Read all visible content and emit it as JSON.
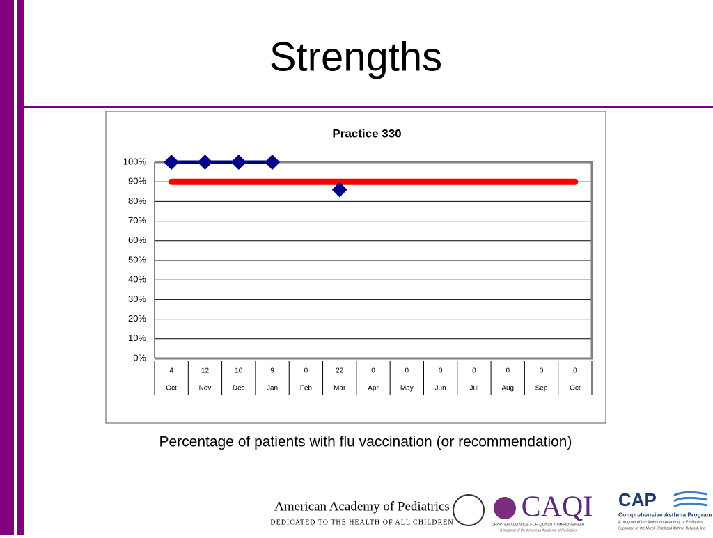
{
  "slide_title": "Strengths",
  "chart_data": {
    "type": "line",
    "title": "Practice 330",
    "categories": [
      "Oct",
      "Nov",
      "Dec",
      "Jan",
      "Feb",
      "Mar",
      "Apr",
      "May",
      "Jun",
      "Jul",
      "Aug",
      "Sep",
      "Oct"
    ],
    "counts": [
      4,
      12,
      10,
      9,
      0,
      22,
      0,
      0,
      0,
      0,
      0,
      0,
      0
    ],
    "series": [
      {
        "color": "#00008b",
        "markers": true,
        "values": [
          100,
          100,
          100,
          100,
          null,
          86,
          null,
          null,
          null,
          null,
          null,
          null,
          null
        ]
      },
      {
        "color": "#ff0000",
        "markers": false,
        "values": [
          90,
          90,
          90,
          90,
          90,
          90,
          90,
          90,
          90,
          90,
          90,
          90,
          90
        ]
      }
    ],
    "ylim": [
      0,
      100
    ],
    "yticks": [
      {
        "value": 0,
        "label": "0%"
      },
      {
        "value": 10,
        "label": "10%"
      },
      {
        "value": 20,
        "label": "20%"
      },
      {
        "value": 30,
        "label": "30%"
      },
      {
        "value": 40,
        "label": "40%"
      },
      {
        "value": 50,
        "label": "50%"
      },
      {
        "value": 60,
        "label": "60%"
      },
      {
        "value": 70,
        "label": "70%"
      },
      {
        "value": 80,
        "label": "80%"
      },
      {
        "value": 90,
        "label": "90%"
      },
      {
        "value": 100,
        "label": "100%"
      }
    ],
    "grid": true
  },
  "caption": "Percentage of patients with flu vaccination (or recommendation)",
  "footer": {
    "aap_name": "American Academy of Pediatrics",
    "aap_tagline": "DEDICATED TO THE HEALTH OF ALL CHILDREN",
    "caqi_name": "CAQI",
    "caqi_line1": "CHAPTER ALLIANCE FOR QUALITY IMPROVEMENT",
    "caqi_line2": "A program of the American Academy of Pediatrics",
    "cap_name": "CAP",
    "cap_line1": "Comprehensive Asthma Program",
    "cap_line2": "A program of the American Academy of Pediatrics",
    "cap_line3": "Supported by the Merck Childhood Asthma Network, Inc."
  }
}
